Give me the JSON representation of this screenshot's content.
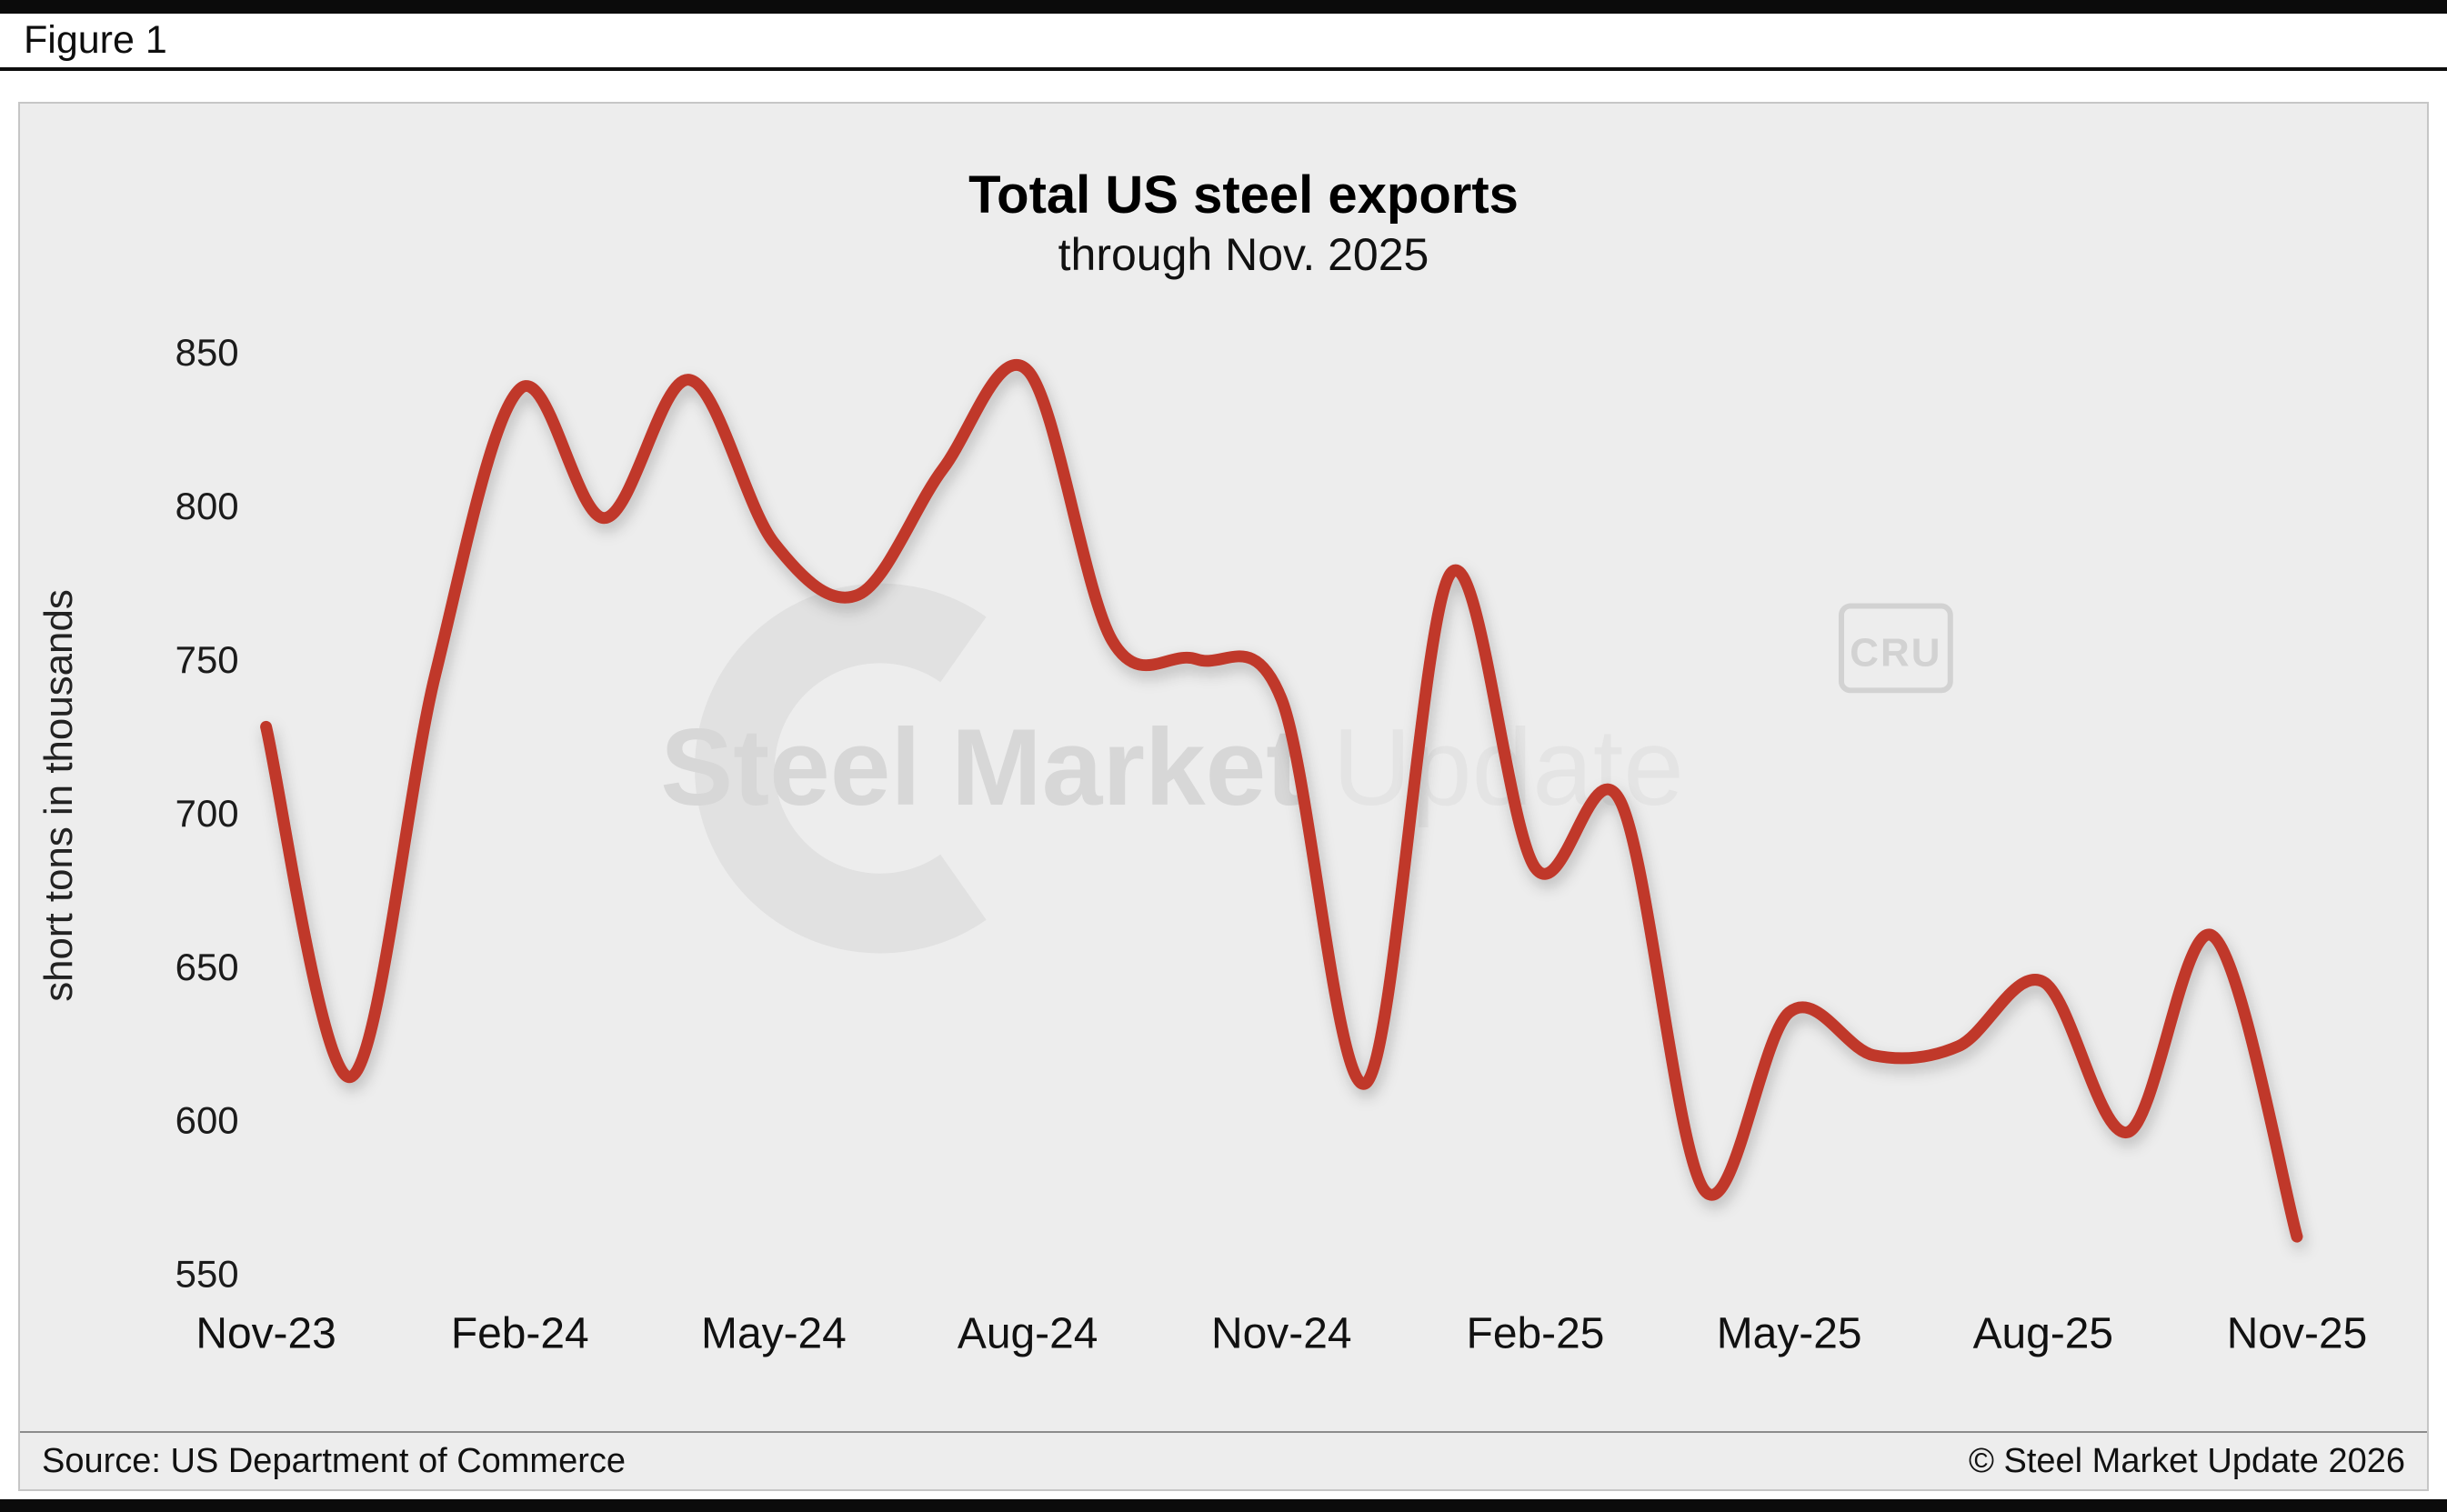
{
  "figure_label": "Figure 1",
  "footer": {
    "source": "Source: US Department of Commerce",
    "copyright": "© Steel Market Update 2026"
  },
  "watermark": {
    "brand_bold": "Steel Market",
    "brand_light": "Update",
    "cru_label": "CRU"
  },
  "chart_data": {
    "type": "line",
    "title": "Total US steel exports",
    "subtitle": "through Nov. 2025",
    "xlabel": "",
    "ylabel": "short tons in thousands",
    "ylim": [
      550,
      850
    ],
    "yticks": [
      850,
      800,
      750,
      700,
      650,
      600,
      550
    ],
    "xtick_every": 3,
    "grid": false,
    "legend": false,
    "line_color": "#c0392b",
    "x": [
      "Nov-23",
      "Dec-23",
      "Jan-24",
      "Feb-24",
      "Mar-24",
      "Apr-24",
      "May-24",
      "Jun-24",
      "Jul-24",
      "Aug-24",
      "Sep-24",
      "Oct-24",
      "Nov-24",
      "Dec-24",
      "Jan-25",
      "Feb-25",
      "Mar-25",
      "Apr-25",
      "May-25",
      "Jun-25",
      "Jul-25",
      "Aug-25",
      "Sep-25",
      "Oct-25",
      "Nov-25"
    ],
    "values": [
      728,
      614,
      745,
      838,
      796,
      841,
      788,
      771,
      812,
      844,
      756,
      750,
      737,
      612,
      778,
      682,
      704,
      577,
      635,
      621,
      624,
      645,
      596,
      660,
      562
    ]
  }
}
